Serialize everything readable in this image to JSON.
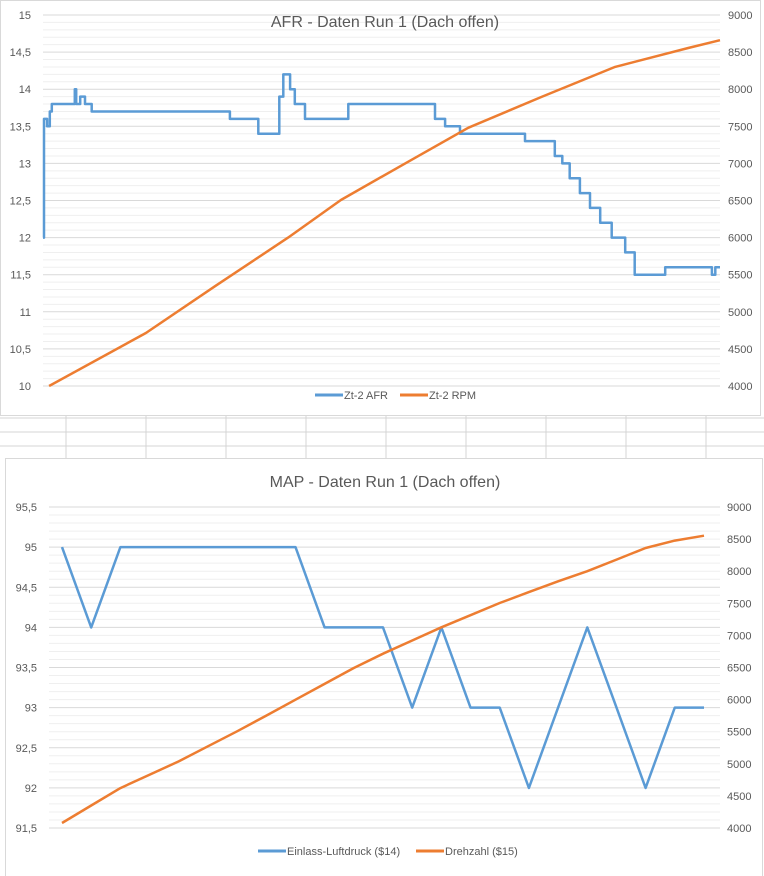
{
  "chart_data": [
    {
      "type": "line",
      "title": "AFR - Daten Run 1 (Dach offen)",
      "xlabel": "",
      "ylabel": "",
      "y2label": "",
      "xlim": [
        0,
        1000
      ],
      "ylim": [
        10,
        15
      ],
      "y2lim": [
        4000,
        9000
      ],
      "y_ticks": [
        "10",
        "10,5",
        "11",
        "11,5",
        "12",
        "12,5",
        "13",
        "13,5",
        "14",
        "14,5",
        "15"
      ],
      "y2_ticks": [
        "4000",
        "4500",
        "5000",
        "5500",
        "6000",
        "6500",
        "7000",
        "7500",
        "8000",
        "8500",
        "9000"
      ],
      "grid": true,
      "legend": "bottom",
      "series": [
        {
          "name": "Zt-2 AFR",
          "axis": "left",
          "color": "#5b9bd5",
          "step": true,
          "points": [
            [
              0,
              12.0
            ],
            [
              1.5,
              13.6
            ],
            [
              6,
              13.5
            ],
            [
              10,
              13.7
            ],
            [
              13,
              13.8
            ],
            [
              43,
              13.8
            ],
            [
              47,
              14.0
            ],
            [
              49,
              13.8
            ],
            [
              55,
              13.9
            ],
            [
              62,
              13.8
            ],
            [
              72,
              13.7
            ],
            [
              195,
              13.7
            ],
            [
              261,
              13.7
            ],
            [
              276,
              13.6
            ],
            [
              313,
              13.6
            ],
            [
              318,
              13.4
            ],
            [
              344,
              13.4
            ],
            [
              349,
              13.9
            ],
            [
              355,
              14.2
            ],
            [
              360,
              14.2
            ],
            [
              365,
              14.0
            ],
            [
              372,
              13.8
            ],
            [
              387,
              13.6
            ],
            [
              446,
              13.6
            ],
            [
              451,
              13.8
            ],
            [
              572,
              13.8
            ],
            [
              579,
              13.6
            ],
            [
              586,
              13.6
            ],
            [
              594,
              13.5
            ],
            [
              616,
              13.4
            ],
            [
              697,
              13.4
            ],
            [
              712,
              13.3
            ],
            [
              746,
              13.3
            ],
            [
              756,
              13.1
            ],
            [
              767,
              13.0
            ],
            [
              778,
              12.8
            ],
            [
              793,
              12.6
            ],
            [
              808,
              12.4
            ],
            [
              823,
              12.2
            ],
            [
              840,
              12.0
            ],
            [
              860,
              11.8
            ],
            [
              874,
              11.5
            ],
            [
              911,
              11.5
            ],
            [
              919,
              11.6
            ],
            [
              985,
              11.6
            ],
            [
              988,
              11.5
            ],
            [
              993,
              11.6
            ],
            [
              1000,
              11.6
            ]
          ]
        },
        {
          "name": "Zt-2 RPM",
          "axis": "right",
          "color": "#ed7d31",
          "step": false,
          "points": [
            [
              9,
              4000
            ],
            [
              152,
              4714
            ],
            [
              255,
              5350
            ],
            [
              362,
              6000
            ],
            [
              440,
              6507
            ],
            [
              535,
              7000
            ],
            [
              628,
              7480
            ],
            [
              736,
              7895
            ],
            [
              845,
              8300
            ],
            [
              953,
              8555
            ],
            [
              1000,
              8660
            ]
          ]
        }
      ]
    },
    {
      "type": "line",
      "title": "MAP - Daten Run 1 (Dach offen)",
      "xlabel": "",
      "ylabel": "",
      "y2label": "",
      "xlim": [
        0,
        22
      ],
      "ylim": [
        91.5,
        95.5
      ],
      "y2lim": [
        4000,
        9000
      ],
      "y_ticks": [
        "91,5",
        "92",
        "92,5",
        "93",
        "93,5",
        "94",
        "94,5",
        "95",
        "95,5"
      ],
      "y2_ticks": [
        "4000",
        "4500",
        "5000",
        "5500",
        "6000",
        "6500",
        "7000",
        "7500",
        "8000",
        "8500",
        "9000"
      ],
      "grid": true,
      "legend": "bottom",
      "series": [
        {
          "name": "Einlass-Luftdruck ($14)",
          "axis": "left",
          "color": "#5b9bd5",
          "step": false,
          "points": [
            [
              0,
              95
            ],
            [
              1,
              94
            ],
            [
              2,
              95
            ],
            [
              3,
              95
            ],
            [
              4,
              95
            ],
            [
              5,
              95
            ],
            [
              6,
              95
            ],
            [
              7,
              95
            ],
            [
              8,
              95
            ],
            [
              9,
              94
            ],
            [
              10,
              94
            ],
            [
              11,
              94
            ],
            [
              12,
              93
            ],
            [
              13,
              94
            ],
            [
              14,
              93
            ],
            [
              15,
              93
            ],
            [
              16,
              92
            ],
            [
              17,
              93
            ],
            [
              18,
              94
            ],
            [
              19,
              93
            ],
            [
              20,
              92
            ],
            [
              21,
              93
            ],
            [
              22,
              93
            ]
          ]
        },
        {
          "name": "Drehzahl ($15)",
          "axis": "right",
          "color": "#ed7d31",
          "step": false,
          "points": [
            [
              0,
              4078
            ],
            [
              1,
              4350
            ],
            [
              2,
              4622
            ],
            [
              3,
              4830
            ],
            [
              4,
              5038
            ],
            [
              5,
              5272
            ],
            [
              6,
              5506
            ],
            [
              7,
              5750
            ],
            [
              8,
              5999
            ],
            [
              9,
              6245
            ],
            [
              10,
              6492
            ],
            [
              11,
              6715
            ],
            [
              12,
              6920
            ],
            [
              13,
              7126
            ],
            [
              14,
              7315
            ],
            [
              15,
              7505
            ],
            [
              16,
              7675
            ],
            [
              17,
              7842
            ],
            [
              18,
              8000
            ],
            [
              19,
              8180
            ],
            [
              20,
              8361
            ],
            [
              21,
              8476
            ],
            [
              22,
              8553
            ]
          ]
        }
      ]
    }
  ]
}
